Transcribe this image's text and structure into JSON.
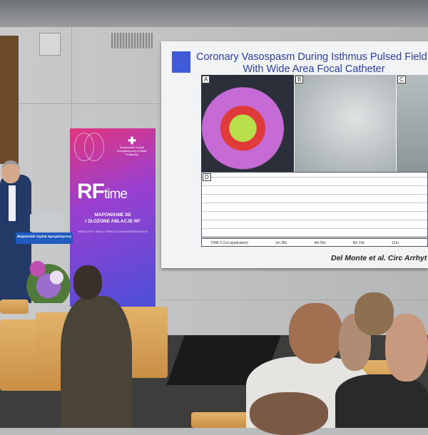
{
  "slide": {
    "title_line1": "Coronary Vasospasm During Isthmus Pulsed Field A",
    "title_line2": "With Wide Area Focal Catheter",
    "panel_labels": [
      "A",
      "B",
      "C",
      "D"
    ],
    "timeline": [
      "TIME 0 (1st application)",
      "1m 38s",
      "4m 09s",
      "8m 10s",
      "12m"
    ],
    "citation": "Del Monte et al. Circ Arrhyt"
  },
  "banner": {
    "logo_text": "Wojewódzki Szpital Specjalistyczny w Białej Podlaskiej",
    "rf": "RF",
    "time": "time",
    "subtitle_line1": "MAPOWANIE 3D",
    "subtitle_line2": "I ZŁOŻONE ABLACJE RF",
    "workshop": "WARSZTATY ABLACYJNE DLA ZAAWANSOWANYCH",
    "colors": [
      "#e0357e",
      "#9a3fd0",
      "#4b4fd9"
    ]
  },
  "podium": {
    "label": "Wojewódzki Szpital Specjalistyczny"
  }
}
